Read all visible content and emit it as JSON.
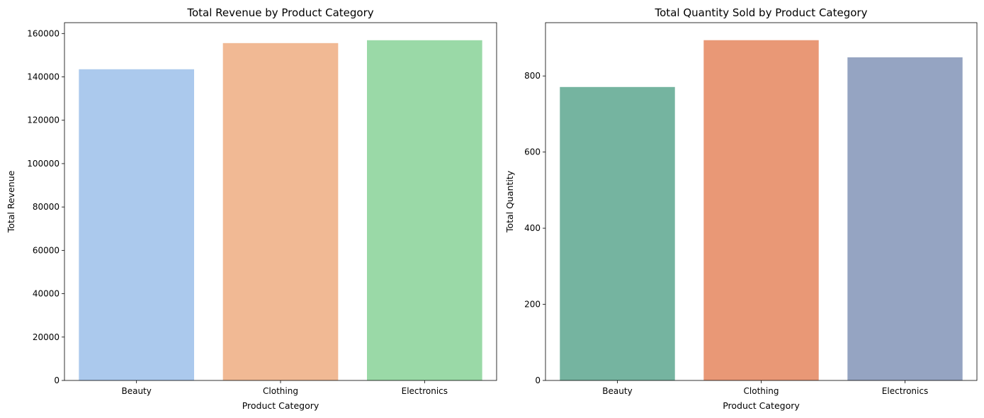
{
  "chart_data": [
    {
      "type": "bar",
      "title": "Total Revenue by Product Category",
      "xlabel": "Product Category",
      "ylabel": "Total Revenue",
      "categories": [
        "Beauty",
        "Clothing",
        "Electronics"
      ],
      "values": [
        143515,
        155580,
        156905
      ],
      "ylim": [
        0,
        165000
      ],
      "yticks": [
        0,
        20000,
        40000,
        60000,
        80000,
        100000,
        120000,
        140000,
        160000
      ],
      "colors": [
        "#abc9ed",
        "#f1b994",
        "#9ad9a7"
      ],
      "grid": false
    },
    {
      "type": "bar",
      "title": "Total Quantity Sold by Product Category",
      "xlabel": "Product Category",
      "ylabel": "Total Quantity",
      "categories": [
        "Beauty",
        "Clothing",
        "Electronics"
      ],
      "values": [
        771,
        894,
        849
      ],
      "ylim": [
        0,
        940
      ],
      "yticks": [
        0,
        200,
        400,
        600,
        800
      ],
      "colors": [
        "#75b4a0",
        "#e99876",
        "#95a4c2"
      ],
      "grid": false
    }
  ]
}
